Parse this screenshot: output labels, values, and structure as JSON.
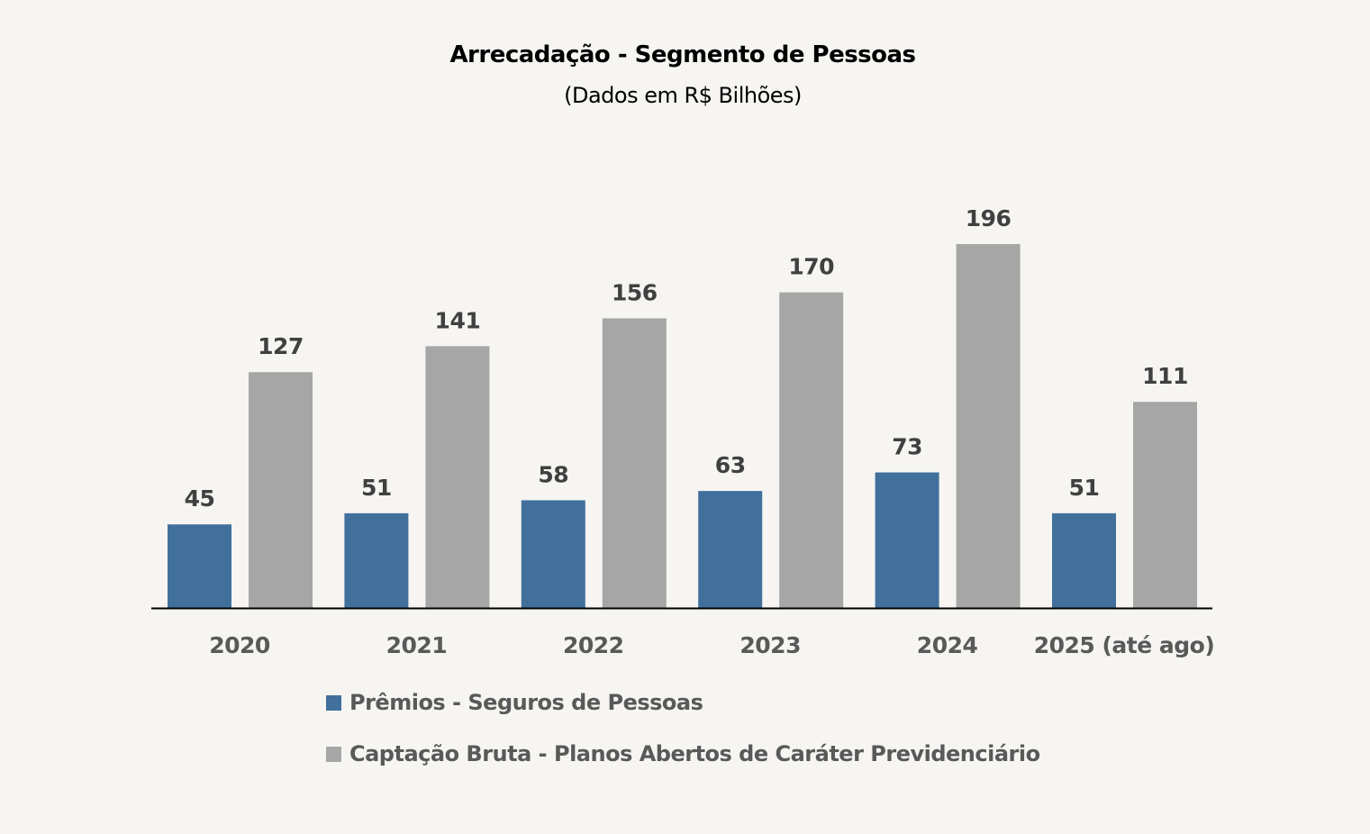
{
  "chart_data": {
    "type": "bar",
    "title": "Arrecadação - Segmento de Pessoas",
    "subtitle": "(Dados em R$ Bilhões)",
    "categories": [
      "2020",
      "2021",
      "2022",
      "2023",
      "2024",
      "2025 (até ago)"
    ],
    "series": [
      {
        "name": "Prêmios - Seguros de Pessoas",
        "color": "#41709c",
        "values": [
          45,
          51,
          58,
          63,
          73,
          51
        ]
      },
      {
        "name": "Captação Bruta - Planos Abertos de Caráter Previdenciário",
        "color": "#a6a6a6",
        "values": [
          127,
          141,
          156,
          170,
          196,
          111
        ]
      }
    ],
    "ylim": [
      0,
      196
    ],
    "grid": false,
    "legend_position": "bottom"
  }
}
